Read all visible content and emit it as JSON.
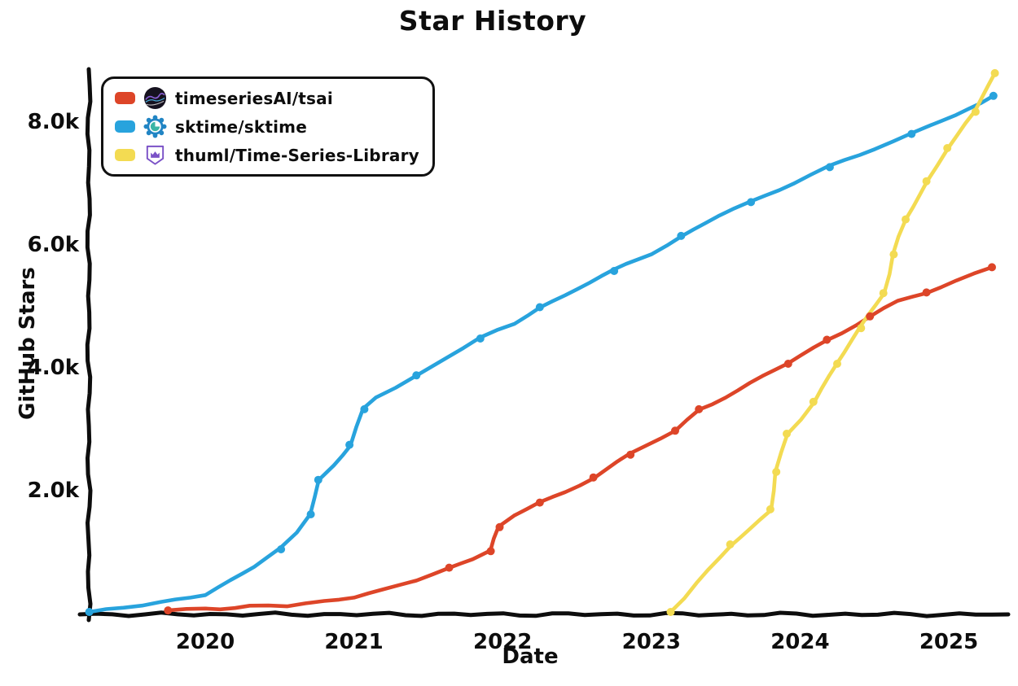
{
  "title": "Star History",
  "y_axis": {
    "label": "GitHub Stars",
    "ticks": [
      {
        "label": "2.0k",
        "value": 2000
      },
      {
        "label": "4.0k",
        "value": 4000
      },
      {
        "label": "6.0k",
        "value": 6000
      },
      {
        "label": "8.0k",
        "value": 8000
      }
    ]
  },
  "x_axis": {
    "label": "Date",
    "ticks": [
      {
        "label": "2020",
        "value": 2020
      },
      {
        "label": "2021",
        "value": 2021
      },
      {
        "label": "2022",
        "value": 2022
      },
      {
        "label": "2023",
        "value": 2023
      },
      {
        "label": "2024",
        "value": 2024
      },
      {
        "label": "2025",
        "value": 2025
      }
    ]
  },
  "legend": {
    "items": [
      {
        "label": "timeseriesAI/tsai",
        "color": "#dd4528",
        "icon": "tsai-avatar"
      },
      {
        "label": "sktime/sktime",
        "color": "#28a3dd",
        "icon": "sktime-avatar"
      },
      {
        "label": "thuml/Time-Series-Library",
        "color": "#f3db52",
        "icon": "thuml-avatar"
      }
    ]
  },
  "chart_data": {
    "type": "line",
    "title": "Star History",
    "xlabel": "Date",
    "ylabel": "GitHub Stars",
    "x_unit": "decimal year",
    "x_range": [
      2019.2,
      2025.4
    ],
    "y_range": [
      0,
      9000
    ],
    "grid": false,
    "legend_position": "top-left",
    "style": "xkcd-hand-drawn",
    "point_format": "[year, stars, marker_dot]",
    "series": [
      {
        "name": "timeseriesAI/tsai",
        "color": "#dd4528",
        "points": [
          [
            2019.75,
            25,
            1
          ],
          [
            2020.0,
            55,
            0
          ],
          [
            2020.3,
            80,
            0
          ],
          [
            2020.55,
            110,
            0
          ],
          [
            2020.8,
            170,
            0
          ],
          [
            2021.0,
            240,
            0
          ],
          [
            2021.2,
            360,
            0
          ],
          [
            2021.42,
            520,
            0
          ],
          [
            2021.64,
            720,
            1
          ],
          [
            2021.8,
            850,
            0
          ],
          [
            2021.92,
            990,
            1
          ],
          [
            2021.98,
            1380,
            1
          ],
          [
            2022.08,
            1560,
            0
          ],
          [
            2022.25,
            1780,
            1
          ],
          [
            2022.42,
            1960,
            0
          ],
          [
            2022.61,
            2190,
            1
          ],
          [
            2022.86,
            2560,
            1
          ],
          [
            2023.16,
            2950,
            1
          ],
          [
            2023.32,
            3300,
            1
          ],
          [
            2023.58,
            3610,
            0
          ],
          [
            2023.92,
            4040,
            1
          ],
          [
            2024.18,
            4430,
            1
          ],
          [
            2024.47,
            4810,
            1
          ],
          [
            2024.66,
            5050,
            0
          ],
          [
            2024.85,
            5200,
            1
          ],
          [
            2025.05,
            5400,
            0
          ],
          [
            2025.29,
            5610,
            1
          ]
        ]
      },
      {
        "name": "sktime/sktime",
        "color": "#28a3dd",
        "points": [
          [
            2019.22,
            0,
            1
          ],
          [
            2019.45,
            70,
            0
          ],
          [
            2019.7,
            150,
            0
          ],
          [
            2020.0,
            290,
            0
          ],
          [
            2020.17,
            520,
            0
          ],
          [
            2020.33,
            730,
            0
          ],
          [
            2020.51,
            1020,
            1
          ],
          [
            2020.62,
            1280,
            0
          ],
          [
            2020.71,
            1590,
            1
          ],
          [
            2020.76,
            2150,
            1
          ],
          [
            2020.86,
            2400,
            0
          ],
          [
            2020.97,
            2720,
            1
          ],
          [
            2021.07,
            3300,
            1
          ],
          [
            2021.15,
            3480,
            0
          ],
          [
            2021.28,
            3650,
            0
          ],
          [
            2021.42,
            3850,
            1
          ],
          [
            2021.62,
            4160,
            0
          ],
          [
            2021.85,
            4450,
            1
          ],
          [
            2022.08,
            4690,
            0
          ],
          [
            2022.25,
            4960,
            1
          ],
          [
            2022.5,
            5270,
            0
          ],
          [
            2022.75,
            5550,
            1
          ],
          [
            2023.0,
            5840,
            0
          ],
          [
            2023.2,
            6120,
            1
          ],
          [
            2023.45,
            6440,
            0
          ],
          [
            2023.67,
            6670,
            1
          ],
          [
            2023.95,
            6990,
            0
          ],
          [
            2024.2,
            7240,
            1
          ],
          [
            2024.5,
            7550,
            0
          ],
          [
            2024.75,
            7780,
            1
          ],
          [
            2025.05,
            8090,
            0
          ],
          [
            2025.3,
            8400,
            1
          ]
        ]
      },
      {
        "name": "thuml/Time-Series-Library",
        "color": "#f3db52",
        "points": [
          [
            2023.13,
            0,
            1
          ],
          [
            2023.3,
            480,
            0
          ],
          [
            2023.53,
            1100,
            1
          ],
          [
            2023.66,
            1360,
            0
          ],
          [
            2023.8,
            1670,
            1
          ],
          [
            2023.84,
            2280,
            1
          ],
          [
            2023.91,
            2900,
            1
          ],
          [
            2024.0,
            3150,
            0
          ],
          [
            2024.09,
            3420,
            1
          ],
          [
            2024.25,
            4040,
            1
          ],
          [
            2024.41,
            4620,
            1
          ],
          [
            2024.56,
            5190,
            1
          ],
          [
            2024.63,
            5820,
            1
          ],
          [
            2024.71,
            6390,
            1
          ],
          [
            2024.85,
            7010,
            1
          ],
          [
            2024.99,
            7550,
            1
          ],
          [
            2025.18,
            8140,
            1
          ],
          [
            2025.31,
            8770,
            1
          ]
        ]
      }
    ]
  }
}
